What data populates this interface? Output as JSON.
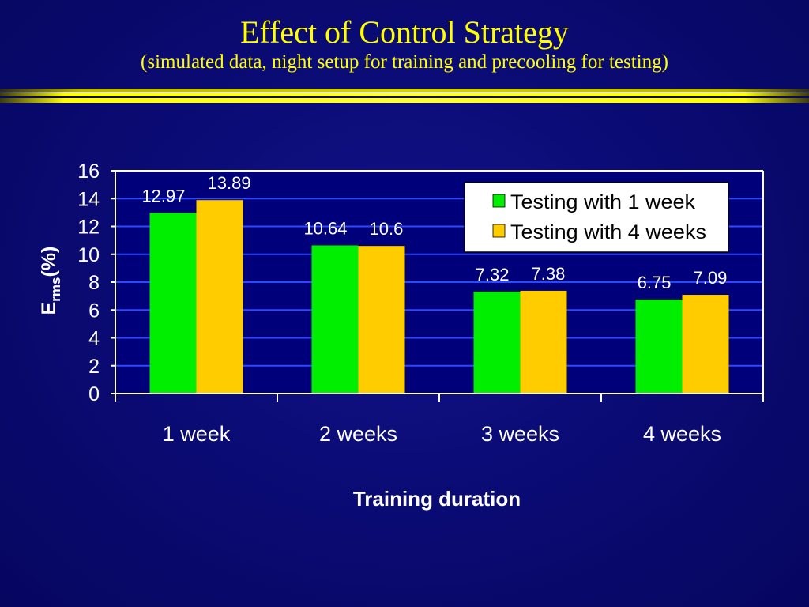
{
  "slide": {
    "title": "Effect of Control Strategy",
    "subtitle": "(simulated data, night setup for training and precooling for testing)",
    "title_color": "#ffff00",
    "background_color": "#0a0a72"
  },
  "chart_data": {
    "type": "bar",
    "categories": [
      "1 week",
      "2 weeks",
      "3 weeks",
      "4 weeks"
    ],
    "series": [
      {
        "name": "Testing with 1 week",
        "values": [
          12.97,
          10.64,
          7.32,
          6.75
        ],
        "labels": [
          "12.97",
          "10.64",
          "7.32",
          "6.75"
        ],
        "color": "#00ee00"
      },
      {
        "name": "Testing with 4 weeks",
        "values": [
          13.89,
          10.6,
          7.38,
          7.09
        ],
        "labels": [
          "13.89",
          "10.6",
          "7.38",
          "7.09"
        ],
        "color": "#ffcc00"
      }
    ],
    "xlabel": "Training duration",
    "ylabel_main": "E",
    "ylabel_sub": "rms",
    "ylabel_unit": "(%)",
    "ylim": [
      0,
      16
    ],
    "yticks": [
      0,
      2,
      4,
      6,
      8,
      10,
      12,
      14,
      16
    ],
    "grid": true,
    "grid_color": "#2f47ff",
    "plot_background": "#00007a",
    "legend_position": "top-right"
  }
}
